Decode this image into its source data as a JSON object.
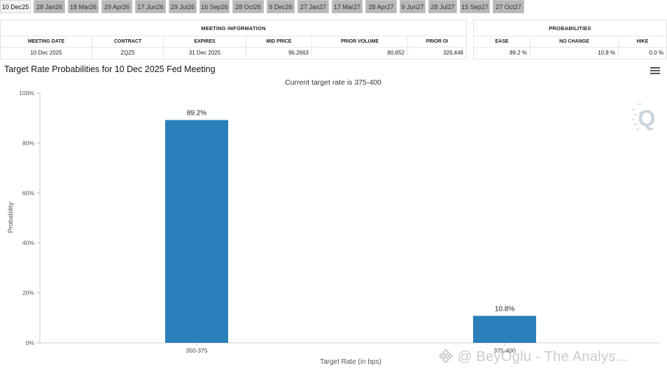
{
  "tabs": [
    "10 Dec25",
    "28 Jan26",
    "18 Mar26",
    "29 Apr26",
    "17 Jun26",
    "29 Jul26",
    "16 Sep26",
    "28 Oct26",
    "9 Dec26",
    "27 Jan27",
    "17 Mar27",
    "28 Apr27",
    "9 Jun27",
    "28 Jul27",
    "15 Sep27",
    "27 Oct27"
  ],
  "active_tab": 0,
  "meeting_info": {
    "title": "MEETING INFORMATION",
    "headers": [
      "MEETING DATE",
      "CONTRACT",
      "EXPIRES",
      "MID PRICE",
      "PRIOR VOLUME",
      "PRIOR OI"
    ],
    "values": [
      "10 Dec 2025",
      "ZQZ5",
      "31 Dec 2025",
      "96.2663",
      "80,652",
      "326,448"
    ]
  },
  "probabilities": {
    "title": "PROBABILITIES",
    "headers": [
      "EASE",
      "NO CHANGE",
      "HIKE"
    ],
    "values": [
      "89.2 %",
      "10.8 %",
      "0.0 %"
    ]
  },
  "chart_title": "Target Rate Probabilities for 10 Dec 2025 Fed Meeting",
  "chart_data": {
    "type": "bar",
    "subtitle": "Current target rate is 375-400",
    "categories": [
      "350-375",
      "375-400"
    ],
    "values": [
      89.2,
      10.8
    ],
    "data_labels": [
      "89.2%",
      "10.8%"
    ],
    "xlabel": "Target Rate (in bps)",
    "ylabel": "Probability",
    "ylim": [
      0,
      100
    ],
    "yticks": [
      "0%",
      "20%",
      "40%",
      "60%",
      "80%",
      "100%"
    ],
    "bar_color": "#2b7fba",
    "grid": false,
    "legend": "none"
  },
  "watermark": "@ BeyOglu - The Analys..."
}
